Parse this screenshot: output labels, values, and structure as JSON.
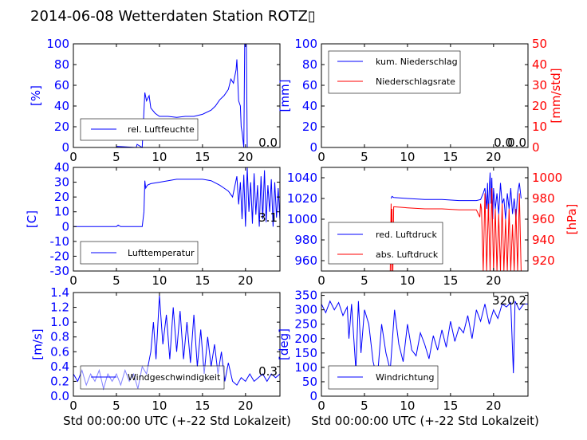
{
  "title": "2014-06-08 Wetterdaten Station ROTZ▯",
  "colors": {
    "blue": "#0000ff",
    "red": "#ff0000",
    "black": "#000000"
  },
  "chart_data": [
    {
      "id": "humidity",
      "type": "line",
      "ylabel": "[%]",
      "xlim": [
        0,
        24
      ],
      "ylim": [
        0,
        100
      ],
      "yticks": [
        0,
        20,
        40,
        60,
        80,
        100
      ],
      "xticks": [
        0,
        5,
        10,
        15,
        20
      ],
      "legend": [
        "rel. Luftfeuchte"
      ],
      "legend_placement": "lower-left",
      "current_value": "0.0",
      "series": [
        {
          "name": "rel. Luftfeuchte",
          "color": "#0000ff",
          "x": [
            0,
            5,
            5.1,
            7.3,
            7.4,
            8.0,
            8.3,
            8.5,
            8.8,
            9.0,
            9.5,
            10,
            11,
            12,
            13,
            14,
            15,
            16,
            16.5,
            17,
            17.5,
            18,
            18.3,
            18.6,
            18.9,
            19.0,
            19.2,
            19.4,
            19.5,
            19.6,
            19.8,
            19.9,
            20.1,
            20.2,
            20.3,
            24
          ],
          "y": [
            0,
            0,
            1,
            0,
            3,
            0,
            53,
            45,
            50,
            38,
            33,
            30,
            30,
            29,
            30,
            30,
            32,
            36,
            40,
            46,
            50,
            56,
            66,
            62,
            75,
            85,
            45,
            40,
            20,
            15,
            0,
            100,
            100,
            0,
            0,
            0
          ]
        }
      ]
    },
    {
      "id": "precipitation",
      "type": "line",
      "ylabel": "[mm]",
      "y2label": "[mm/std]",
      "xlim": [
        0,
        24
      ],
      "ylim": [
        0,
        100
      ],
      "y2lim": [
        0,
        50
      ],
      "yticks": [
        0,
        20,
        40,
        60,
        80,
        100
      ],
      "y2ticks": [
        0,
        10,
        20,
        30,
        40,
        50
      ],
      "xticks": [
        0,
        5,
        10,
        15,
        20
      ],
      "legend": [
        "kum. Niederschlag",
        "Niederschlagsrate"
      ],
      "legend_placement": "upper-left",
      "current_value": "0.0",
      "current_value_2": "0.0",
      "series": [
        {
          "name": "kum. Niederschlag",
          "color": "#0000ff",
          "axis": "left",
          "x": [
            0,
            24
          ],
          "y": [
            0,
            0
          ]
        },
        {
          "name": "Niederschlagsrate",
          "color": "#ff0000",
          "axis": "right",
          "x": [
            0,
            24
          ],
          "y": [
            0,
            0
          ]
        }
      ]
    },
    {
      "id": "temperature",
      "type": "line",
      "ylabel": "[C]",
      "xlim": [
        0,
        24
      ],
      "ylim": [
        -30,
        40
      ],
      "yticks": [
        -30,
        -20,
        -10,
        0,
        10,
        20,
        30,
        40
      ],
      "xticks": [
        0,
        5,
        10,
        15,
        20
      ],
      "legend": [
        "Lufttemperatur"
      ],
      "legend_placement": "lower-left",
      "current_value": "3.1",
      "series": [
        {
          "name": "Lufttemperatur",
          "color": "#0000ff",
          "x": [
            0,
            5,
            5.2,
            5.5,
            8.0,
            8.2,
            8.3,
            8.4,
            8.6,
            9,
            10,
            11,
            12,
            13,
            14,
            15,
            16,
            17,
            17.5,
            18,
            18.5,
            19.0,
            19.2,
            19.4,
            19.6,
            19.8,
            20.0,
            20.2,
            20.4,
            20.6,
            20.8,
            21.0,
            21.2,
            21.4,
            21.6,
            21.8,
            22.0,
            22.2,
            22.4,
            22.6,
            22.8,
            23.0,
            23.2,
            23.4,
            23.6,
            23.8,
            24
          ],
          "y": [
            0,
            0,
            1,
            0,
            0,
            10,
            31,
            26,
            28,
            29,
            30,
            31,
            32,
            32,
            32,
            32,
            31,
            28,
            26,
            24,
            20,
            34,
            15,
            30,
            5,
            35,
            0,
            40,
            10,
            30,
            2,
            36,
            8,
            28,
            0,
            34,
            5,
            38,
            3,
            28,
            10,
            32,
            0,
            30,
            6,
            26,
            4
          ]
        }
      ]
    },
    {
      "id": "pressure",
      "type": "line",
      "ylabel": "",
      "y2label": "[hPa]",
      "xlim": [
        0,
        24
      ],
      "ylim": [
        950,
        1050
      ],
      "y2lim": [
        910,
        1010
      ],
      "yticks": [
        960,
        980,
        1000,
        1020,
        1040
      ],
      "y2ticks": [
        920,
        940,
        960,
        980,
        1000
      ],
      "xticks": [
        0,
        5,
        10,
        15,
        20
      ],
      "legend": [
        "red. Luftdruck",
        "abs. Luftdruck"
      ],
      "legend_placement": "lower-left",
      "series": [
        {
          "name": "red. Luftdruck",
          "color": "#0000ff",
          "axis": "left",
          "x": [
            8.1,
            8.2,
            8.4,
            10,
            12,
            14,
            16,
            18,
            18.5,
            18.8,
            19.0,
            19.2,
            19.3,
            19.4,
            19.5,
            19.6,
            19.7,
            19.8,
            19.9,
            20.0,
            20.2,
            20.4,
            20.6,
            20.8,
            21.0,
            21.2,
            21.4,
            21.6,
            21.8,
            22.0,
            22.2,
            22.4,
            22.6,
            22.8,
            23.0,
            23.2
          ],
          "y": [
            1020,
            1022,
            1021,
            1020,
            1019,
            1019,
            1018,
            1018,
            1019,
            1025,
            1030,
            1010,
            1035,
            1000,
            1028,
            1045,
            1015,
            1040,
            1000,
            1030,
            1010,
            1025,
            1005,
            1035,
            1015,
            1020,
            1000,
            1025,
            1010,
            1030,
            1005,
            1020,
            1000,
            1025,
            1035,
            1020
          ]
        },
        {
          "name": "abs. Luftdruck",
          "color": "#ff0000",
          "axis": "right",
          "x": [
            8.0,
            8.1,
            8.15,
            8.2,
            8.3,
            8.4,
            10,
            12,
            14,
            16,
            18,
            18.4,
            18.5,
            18.6,
            18.8,
            19.0,
            19.2,
            19.4,
            19.6,
            19.8,
            20.0,
            20.2,
            20.4,
            20.6,
            20.8,
            21.0,
            21.2,
            21.4,
            21.6,
            21.8,
            22.0,
            22.2,
            22.4,
            22.6,
            22.8,
            23.0,
            23.2
          ],
          "y": [
            910,
            975,
            910,
            970,
            910,
            972,
            971,
            970,
            970,
            969,
            969,
            962,
            975,
            970,
            910,
            985,
            910,
            975,
            910,
            990,
            910,
            970,
            910,
            965,
            910,
            975,
            910,
            960,
            910,
            970,
            910,
            955,
            910,
            970,
            910,
            985,
            910
          ]
        }
      ]
    },
    {
      "id": "wind-speed",
      "type": "line",
      "ylabel": "[m/s]",
      "xlabel": "Std 00:00:00 UTC (+-22 Std Lokalzeit)",
      "xlim": [
        0,
        24
      ],
      "ylim": [
        0,
        1.4
      ],
      "yticks": [
        0.0,
        0.2,
        0.4,
        0.6,
        0.8,
        1.0,
        1.2,
        1.4
      ],
      "xticks": [
        0,
        5,
        10,
        15,
        20
      ],
      "legend": [
        "Windgeschwindigkeit"
      ],
      "legend_placement": "lower-left",
      "current_value": "0.3",
      "series": [
        {
          "name": "Windgeschwindigkeit",
          "color": "#0000ff",
          "x": [
            0,
            0.5,
            1,
            1.5,
            2,
            2.5,
            3,
            3.5,
            4,
            4.5,
            5,
            5.5,
            6,
            6.5,
            7,
            7.5,
            8,
            8.5,
            9,
            9.3,
            9.6,
            10,
            10.4,
            10.8,
            11.2,
            11.6,
            12,
            12.4,
            12.8,
            13.2,
            13.6,
            14,
            14.4,
            14.8,
            15.2,
            15.6,
            16,
            16.4,
            16.8,
            17.2,
            17.6,
            18,
            18.5,
            19,
            19.5,
            20,
            20.5,
            21,
            21.5,
            22,
            22.5,
            23,
            23.5,
            24
          ],
          "y": [
            0.3,
            0.2,
            0.35,
            0.15,
            0.3,
            0.2,
            0.35,
            0.1,
            0.3,
            0.2,
            0.3,
            0.15,
            0.35,
            0.2,
            0.3,
            0.1,
            0.4,
            0.3,
            0.6,
            1.0,
            0.5,
            1.36,
            0.7,
            1.1,
            0.5,
            1.2,
            0.6,
            1.15,
            0.5,
            1.0,
            0.45,
            1.1,
            0.4,
            0.9,
            0.3,
            0.8,
            0.4,
            0.7,
            0.3,
            0.6,
            0.2,
            0.45,
            0.2,
            0.15,
            0.25,
            0.2,
            0.3,
            0.2,
            0.25,
            0.3,
            0.2,
            0.3,
            0.25,
            0.3
          ]
        }
      ]
    },
    {
      "id": "wind-direction",
      "type": "line",
      "ylabel": "[deg]",
      "xlabel": "Std 00:00:00 UTC (+-22 Std Lokalzeit)",
      "xlim": [
        0,
        24
      ],
      "ylim": [
        0,
        360
      ],
      "yticks": [
        0,
        50,
        100,
        150,
        200,
        250,
        300,
        350
      ],
      "xticks": [
        0,
        5,
        10,
        15,
        20
      ],
      "legend": [
        "Windrichtung"
      ],
      "legend_placement": "lower-left",
      "current_value": "320.2",
      "series": [
        {
          "name": "Windrichtung",
          "color": "#0000ff",
          "x": [
            0,
            0.5,
            1,
            1.5,
            2,
            2.5,
            3,
            3.2,
            3.5,
            4,
            4.3,
            4.6,
            5,
            5.5,
            6,
            6.5,
            7,
            7.5,
            8,
            8.5,
            9,
            9.5,
            10,
            10.5,
            11,
            11.5,
            12,
            12.5,
            13,
            13.5,
            14,
            14.5,
            15,
            15.5,
            16,
            16.5,
            17,
            17.5,
            18,
            18.5,
            19,
            19.5,
            20,
            20.5,
            21,
            21.5,
            22,
            22.3,
            22.5,
            23,
            23.5,
            24
          ],
          "y": [
            320,
            290,
            330,
            300,
            325,
            280,
            310,
            200,
            320,
            90,
            330,
            150,
            300,
            250,
            120,
            60,
            250,
            150,
            90,
            300,
            180,
            120,
            250,
            160,
            140,
            220,
            180,
            130,
            210,
            160,
            230,
            170,
            260,
            190,
            240,
            220,
            280,
            200,
            300,
            260,
            320,
            250,
            300,
            270,
            320,
            310,
            325,
            80,
            330,
            300,
            320,
            320
          ]
        }
      ]
    }
  ]
}
